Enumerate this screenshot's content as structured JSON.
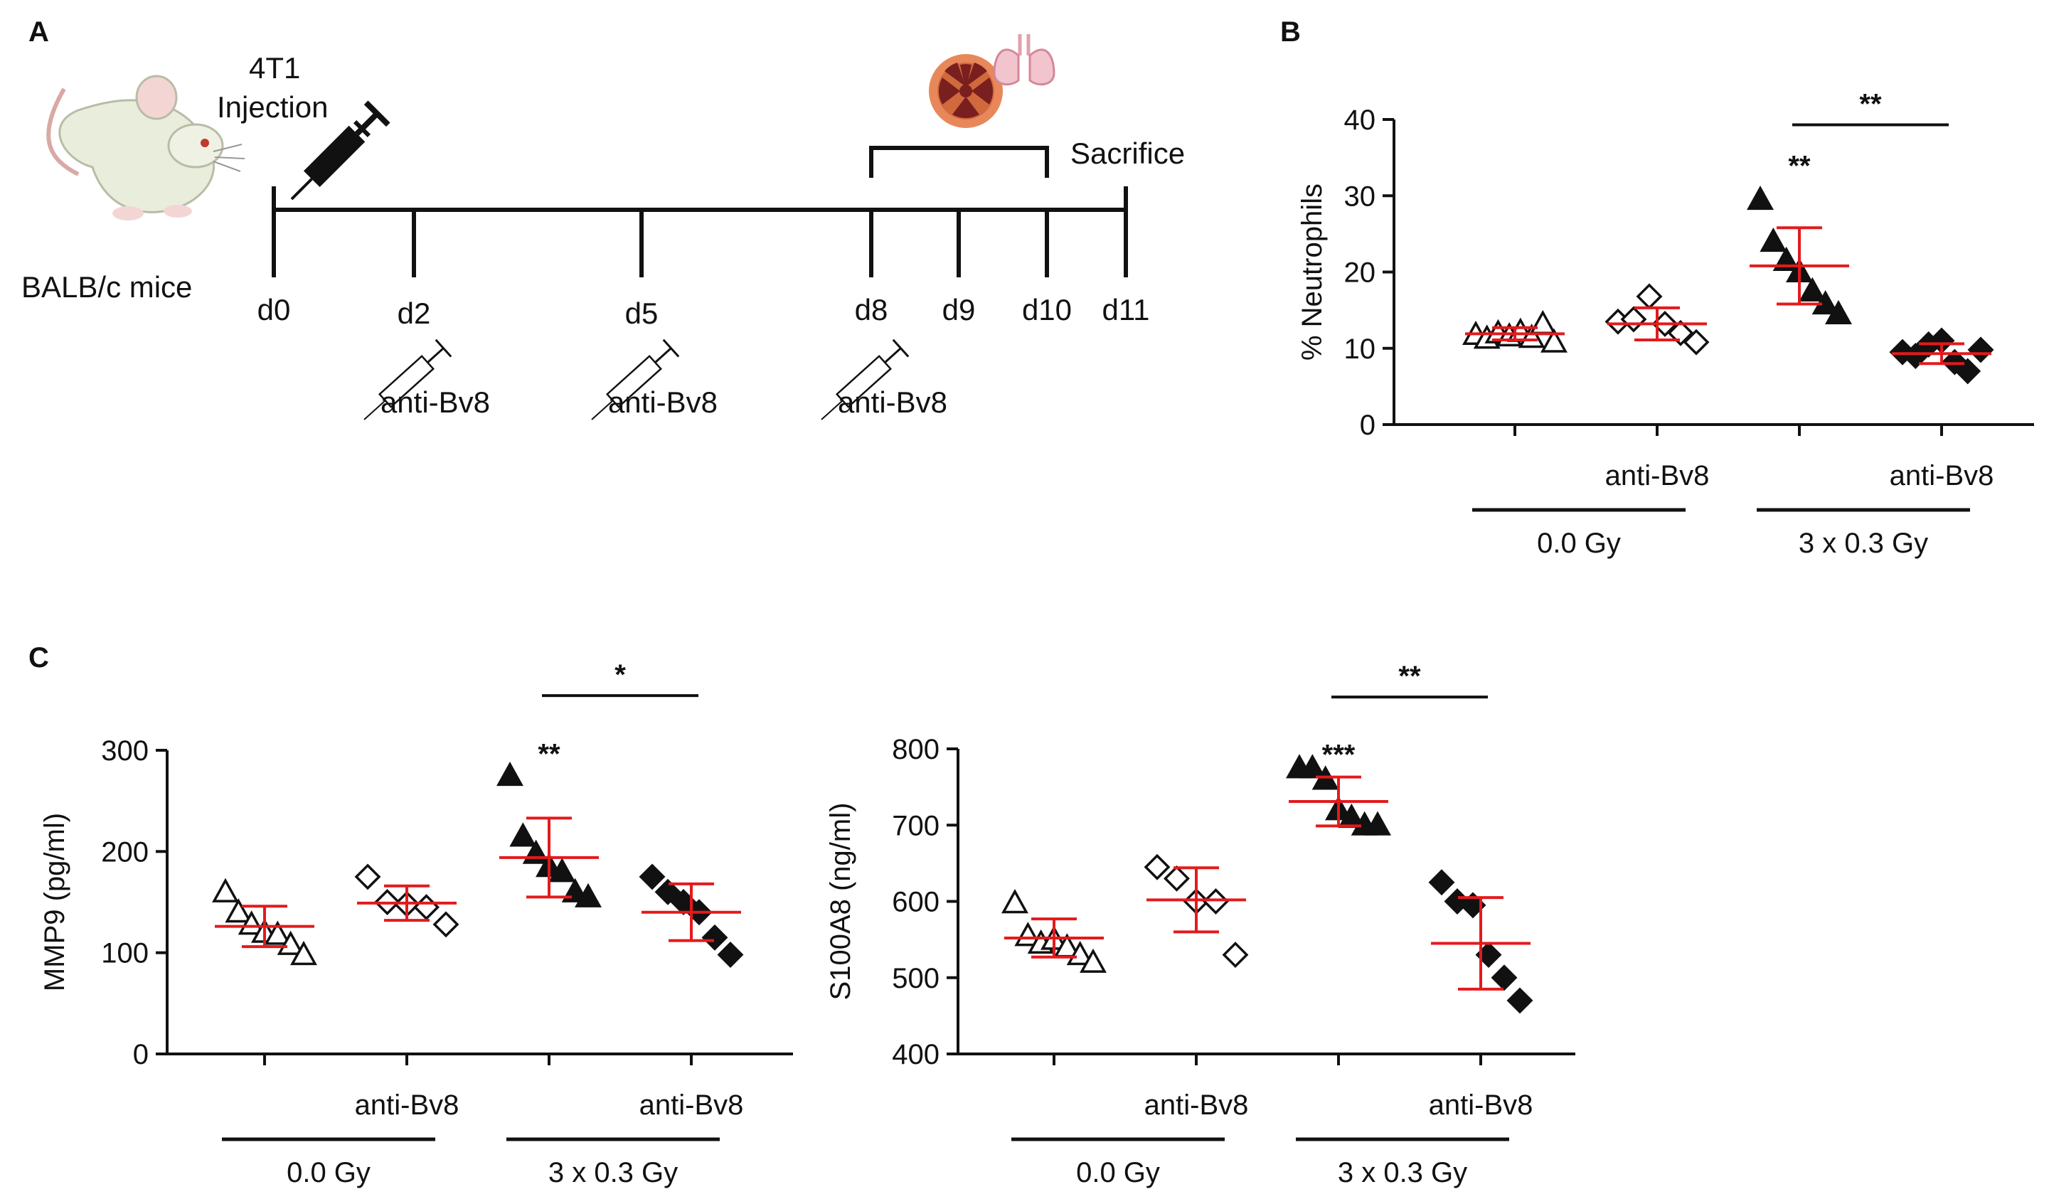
{
  "panels": {
    "A": {
      "letter": "A",
      "mouse_label": "BALB/c mice",
      "injection_label_line1": "4T1",
      "injection_label_line2": "Injection",
      "sacrifice_label": "Sacrifice",
      "days": [
        "d0",
        "d2",
        "d5",
        "d8",
        "d9",
        "d10",
        "d11"
      ],
      "treatment_label": "anti-Bv8",
      "treatment_days": [
        "d2",
        "d5",
        "d8"
      ],
      "irradiation_window": [
        "d8",
        "d10"
      ],
      "icons": [
        "mouse-icon",
        "syringe-icon",
        "radiation-icon",
        "lungs-icon"
      ],
      "colors": {
        "line": "#111111",
        "radiation": "#e8885a",
        "lungs": "#e8a6b4"
      }
    },
    "B": {
      "letter": "B"
    },
    "C": {
      "letter": "C"
    }
  },
  "chart_data": [
    {
      "id": "B",
      "type": "scatter",
      "ylabel": "% Neutrophils",
      "ylim": [
        0,
        40
      ],
      "yticks": [
        0,
        10,
        20,
        30,
        40
      ],
      "group_labels": [
        "0.0 Gy",
        "3 x 0.3 Gy"
      ],
      "treatment_labels": [
        "",
        "anti-Bv8",
        "",
        "anti-Bv8"
      ],
      "colors": {
        "mean_sd": "#e31a1c",
        "marker": "#111111"
      },
      "series": [
        {
          "name": "0.0 Gy",
          "marker": "triangle-open",
          "values": [
            11.8,
            11.3,
            12.0,
            11.6,
            12.2,
            11.4,
            13.2,
            10.8
          ],
          "mean": 11.9,
          "sd": 0.8
        },
        {
          "name": "0.0 Gy anti-Bv8",
          "marker": "diamond-open",
          "values": [
            13.5,
            13.8,
            16.8,
            13.2,
            12.0,
            10.8
          ],
          "mean": 13.2,
          "sd": 2.1
        },
        {
          "name": "3 x 0.3 Gy",
          "marker": "triangle-filled",
          "values": [
            29.5,
            24.0,
            21.5,
            20.0,
            17.5,
            15.8,
            14.5
          ],
          "mean": 20.8,
          "sd": 5.0
        },
        {
          "name": "3 x 0.3 Gy anti-Bv8",
          "marker": "diamond-filled",
          "values": [
            9.5,
            9.0,
            10.5,
            11.0,
            8.2,
            7.0,
            9.8
          ],
          "mean": 9.3,
          "sd": 1.3
        }
      ],
      "annotations": [
        {
          "text": "**",
          "over": 2,
          "y": 34
        },
        {
          "text": "**",
          "bracket": [
            2,
            3
          ],
          "y": 39.3
        }
      ]
    },
    {
      "id": "C-left",
      "type": "scatter",
      "ylabel": "MMP9 (pg/ml)",
      "ylim": [
        0,
        300
      ],
      "yticks": [
        0,
        100,
        200,
        300
      ],
      "group_labels": [
        "0.0 Gy",
        "3 x 0.3 Gy"
      ],
      "treatment_labels": [
        "",
        "anti-Bv8",
        "",
        "anti-Bv8"
      ],
      "colors": {
        "mean_sd": "#e31a1c",
        "marker": "#111111"
      },
      "series": [
        {
          "name": "0.0 Gy",
          "marker": "triangle-open",
          "values": [
            160,
            140,
            128,
            120,
            118,
            108,
            98
          ],
          "mean": 126,
          "sd": 20
        },
        {
          "name": "0.0 Gy anti-Bv8",
          "marker": "diamond-open",
          "values": [
            175,
            150,
            148,
            145,
            128
          ],
          "mean": 149,
          "sd": 17
        },
        {
          "name": "3 x 0.3 Gy",
          "marker": "triangle-filled",
          "values": [
            275,
            215,
            198,
            185,
            180,
            160,
            155
          ],
          "mean": 194,
          "sd": 39
        },
        {
          "name": "3 x 0.3 Gy anti-Bv8",
          "marker": "diamond-filled",
          "values": [
            175,
            160,
            150,
            140,
            115,
            98
          ],
          "mean": 140,
          "sd": 28
        }
      ],
      "annotations": [
        {
          "text": "**",
          "over": 2,
          "y": 297
        },
        {
          "text": "*",
          "bracket": [
            2,
            3
          ],
          "y": 354
        }
      ]
    },
    {
      "id": "C-right",
      "type": "scatter",
      "ylabel": "S100A8 (ng/ml)",
      "ylim": [
        400,
        800
      ],
      "yticks": [
        400,
        500,
        600,
        700,
        800
      ],
      "group_labels": [
        "0.0 Gy",
        "3 x 0.3 Gy"
      ],
      "treatment_labels": [
        "",
        "anti-Bv8",
        "",
        "anti-Bv8"
      ],
      "colors": {
        "mean_sd": "#e31a1c",
        "marker": "#111111"
      },
      "series": [
        {
          "name": "0.0 Gy",
          "marker": "triangle-open",
          "values": [
            598,
            555,
            545,
            550,
            540,
            530,
            520
          ],
          "mean": 552,
          "sd": 25
        },
        {
          "name": "0.0 Gy anti-Bv8",
          "marker": "diamond-open",
          "values": [
            645,
            630,
            600,
            600,
            530
          ],
          "mean": 602,
          "sd": 42
        },
        {
          "name": "3 x 0.3 Gy",
          "marker": "triangle-filled",
          "values": [
            775,
            775,
            760,
            720,
            710,
            700,
            700
          ],
          "mean": 731,
          "sd": 32
        },
        {
          "name": "3 x 0.3 Gy anti-Bv8",
          "marker": "diamond-filled",
          "values": [
            625,
            600,
            595,
            530,
            500,
            470
          ],
          "mean": 545,
          "sd": 60
        }
      ],
      "annotations": [
        {
          "text": "***",
          "over": 2,
          "y": 793
        },
        {
          "text": "**",
          "bracket": [
            2,
            3
          ],
          "y": 868
        }
      ]
    }
  ]
}
